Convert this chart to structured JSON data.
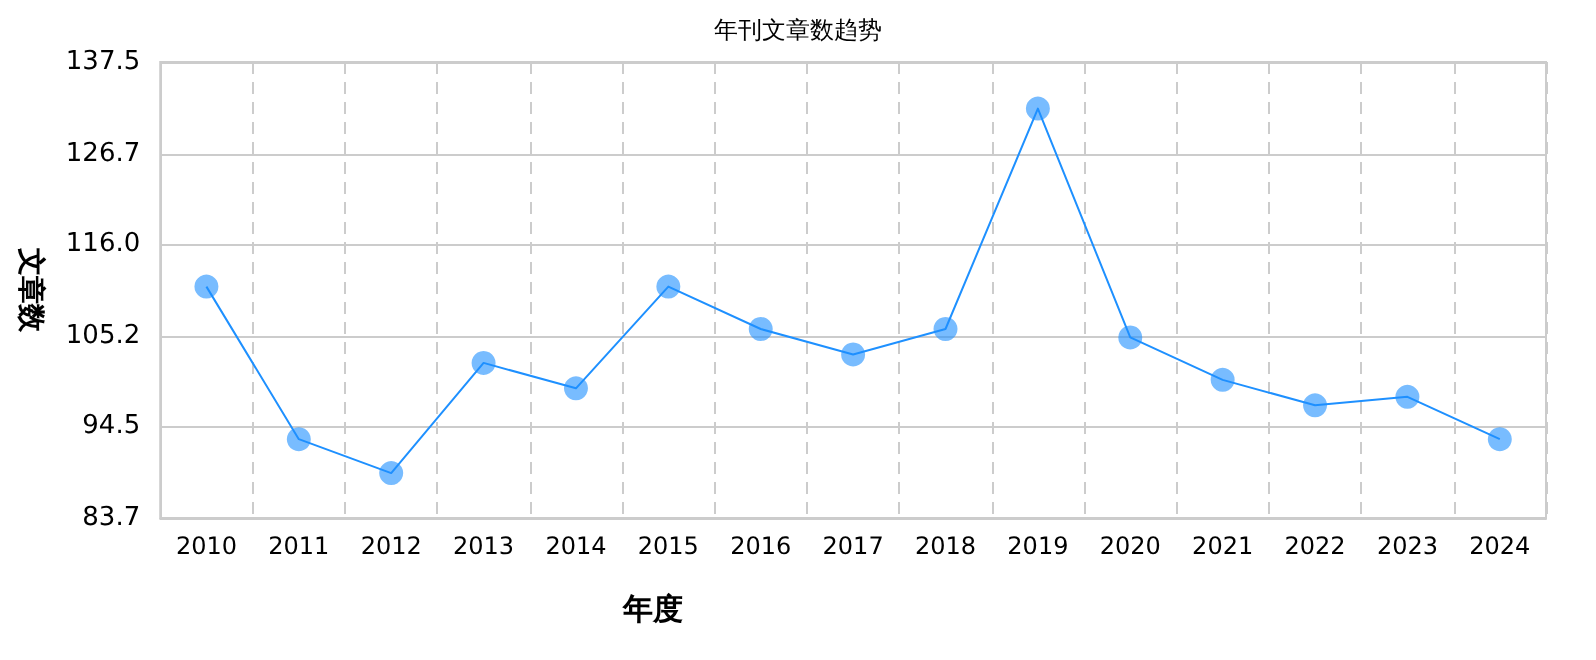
{
  "chart_data": {
    "type": "line",
    "title": "年刊文章数趋势",
    "xlabel": "年度",
    "ylabel": "文章数",
    "categories": [
      "2010",
      "2011",
      "2012",
      "2013",
      "2014",
      "2015",
      "2016",
      "2017",
      "2018",
      "2019",
      "2020",
      "2021",
      "2022",
      "2023",
      "2024"
    ],
    "series": [
      {
        "color": "#1e90ff",
        "values": [
          111,
          93,
          89,
          102,
          99,
          111,
          106,
          103,
          106,
          132,
          105,
          100,
          97,
          98,
          93
        ]
      }
    ],
    "ylim": [
      83.7,
      137.5
    ],
    "yticks": [
      83.7,
      94.5,
      105.2,
      {
        "value": 116,
        "label": "116.0"
      },
      126.7,
      137.5
    ],
    "grid": true,
    "marker": "circle",
    "line_style": "solid"
  }
}
